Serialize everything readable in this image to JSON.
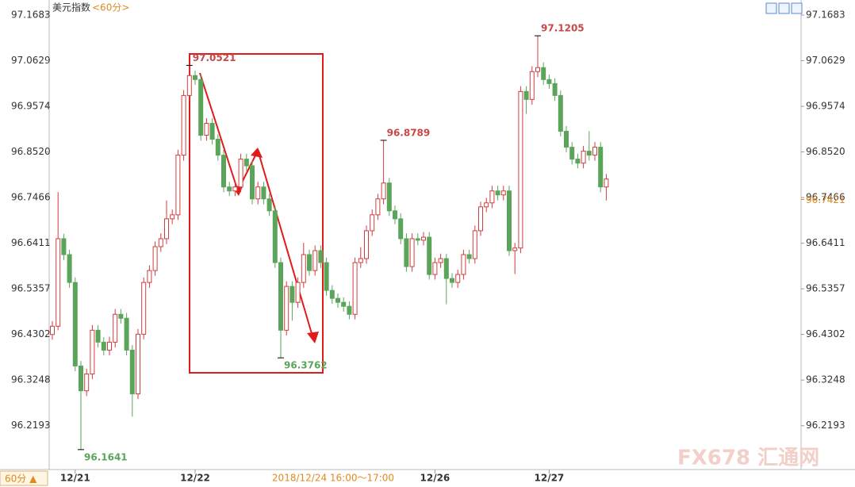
{
  "chart_data": {
    "type": "candlestick",
    "title": "美元指数",
    "period": "<60分>",
    "period_button": "60分 ▲",
    "crosshair_label": "2018/12/24 16:00～17:00",
    "watermark": "FX678 汇通网",
    "categories": [
      null,
      null,
      null,
      null,
      "12/21",
      null,
      null,
      null,
      null,
      null,
      null,
      null,
      null,
      null,
      null,
      null,
      null,
      null,
      null,
      null,
      null,
      null,
      null,
      null,
      null,
      "12/22",
      null,
      null,
      null,
      null,
      null,
      null,
      null,
      null,
      null,
      null,
      null,
      null,
      null,
      null,
      null,
      null,
      null,
      null,
      null,
      null,
      null,
      null,
      null,
      null,
      null,
      null,
      null,
      null,
      null,
      null,
      null,
      null,
      null,
      null,
      null,
      null,
      null,
      null,
      null,
      null,
      null,
      "12/26",
      null,
      null,
      null,
      null,
      null,
      null,
      null,
      null,
      null,
      null,
      null,
      null,
      null,
      null,
      null,
      null,
      null,
      null,
      null,
      "12/27",
      null,
      null,
      null,
      null,
      null,
      null,
      null,
      null,
      null,
      null
    ],
    "open": [
      96.43,
      96.4492,
      96.6515,
      96.6147,
      96.5504,
      96.3573,
      96.3,
      96.3389,
      96.44,
      96.4124,
      96.394,
      96.4124,
      96.4768,
      96.4676,
      96.394,
      96.2929,
      96.4308,
      96.5504,
      96.5779,
      96.6331,
      96.6515,
      96.6975,
      96.7067,
      96.8446,
      96.9825,
      97.0285,
      97.0193,
      96.8906,
      96.9182,
      96.8814,
      96.8446,
      96.7711,
      96.7619,
      96.7711,
      96.8354,
      96.82,
      96.7435,
      96.7711,
      96.7435,
      96.7159,
      96.5963,
      96.44,
      96.5412,
      96.5044,
      96.5504,
      96.6147,
      96.5779,
      96.6239,
      96.5963,
      96.532,
      96.5136,
      96.5044,
      96.4952,
      96.4768,
      96.5963,
      96.6055,
      96.6699,
      96.7067,
      96.7435,
      96.7802,
      96.7159,
      96.6975,
      96.6515,
      96.5871,
      96.6515,
      96.648,
      96.655,
      96.5688,
      96.5963,
      96.6055,
      96.5596,
      96.5504,
      96.5688,
      96.6147,
      96.6055,
      96.6699,
      96.7251,
      96.7343,
      96.7619,
      96.7527,
      96.7619,
      96.6239,
      96.63,
      96.9917,
      96.9734,
      97.0377,
      97.0469,
      97.0193,
      97.01,
      96.9825,
      96.8998,
      96.863,
      96.8354,
      96.8262,
      96.8538,
      96.8446,
      96.863,
      96.7711
    ],
    "high": [
      96.461,
      96.759,
      96.663,
      96.626,
      96.562,
      96.369,
      96.351,
      96.452,
      96.452,
      96.424,
      96.425,
      96.489,
      96.489,
      96.48,
      96.406,
      96.443,
      96.562,
      96.59,
      96.645,
      96.664,
      96.74,
      96.719,
      96.857,
      96.995,
      97.0521,
      97.04,
      97.031,
      96.93,
      96.93,
      96.893,
      96.857,
      96.783,
      96.783,
      96.848,
      96.848,
      96.832,
      96.783,
      96.783,
      96.755,
      96.728,
      96.608,
      96.553,
      96.553,
      96.562,
      96.642,
      96.626,
      96.636,
      96.636,
      96.608,
      96.544,
      96.525,
      96.516,
      96.507,
      96.608,
      96.632,
      96.682,
      96.719,
      96.755,
      96.8789,
      96.792,
      96.728,
      96.71,
      96.664,
      96.664,
      96.664,
      96.667,
      96.667,
      96.608,
      96.617,
      96.617,
      96.572,
      96.58,
      96.626,
      96.626,
      96.682,
      96.737,
      96.746,
      96.774,
      96.774,
      96.774,
      96.774,
      96.642,
      97.004,
      97.004,
      97.05,
      97.1205,
      97.059,
      97.031,
      97.022,
      96.994,
      96.912,
      96.875,
      96.848,
      96.866,
      96.9,
      96.875,
      96.875,
      96.801
    ],
    "low": [
      96.418,
      96.44,
      96.602,
      96.538,
      96.345,
      96.1641,
      96.288,
      96.327,
      96.4,
      96.382,
      96.382,
      96.4,
      96.455,
      96.382,
      96.24,
      96.281,
      96.419,
      96.538,
      96.566,
      96.621,
      96.639,
      96.685,
      96.695,
      96.832,
      96.97,
      97.007,
      96.878,
      96.878,
      96.869,
      96.832,
      96.759,
      96.75,
      96.75,
      96.759,
      96.808,
      96.731,
      96.731,
      96.731,
      96.704,
      96.584,
      96.3762,
      96.428,
      96.462,
      96.492,
      96.538,
      96.566,
      96.566,
      96.584,
      96.52,
      96.501,
      96.492,
      96.483,
      96.465,
      96.465,
      96.584,
      96.594,
      96.658,
      96.695,
      96.731,
      96.704,
      96.685,
      96.639,
      96.575,
      96.575,
      96.636,
      96.636,
      96.557,
      96.557,
      96.584,
      96.5,
      96.538,
      96.538,
      96.557,
      96.594,
      96.594,
      96.658,
      96.713,
      96.722,
      96.74,
      96.74,
      96.612,
      96.57,
      96.618,
      96.94,
      96.961,
      97.025,
      97.007,
      96.998,
      96.97,
      96.888,
      96.851,
      96.823,
      96.814,
      96.814,
      96.832,
      96.832,
      96.759,
      96.74
    ],
    "close": [
      96.4492,
      96.6515,
      96.6147,
      96.5504,
      96.3573,
      96.3,
      96.3389,
      96.44,
      96.4124,
      96.394,
      96.4124,
      96.4768,
      96.4676,
      96.394,
      96.2929,
      96.4308,
      96.5504,
      96.5779,
      96.6331,
      96.6515,
      96.6975,
      96.7067,
      96.8446,
      96.9825,
      97.0285,
      97.0193,
      96.8906,
      96.9182,
      96.8814,
      96.8446,
      96.7711,
      96.7619,
      96.7711,
      96.8354,
      96.82,
      96.7435,
      96.7711,
      96.7435,
      96.7159,
      96.5963,
      96.44,
      96.5412,
      96.5044,
      96.5504,
      96.6147,
      96.5779,
      96.6239,
      96.5963,
      96.532,
      96.5136,
      96.5044,
      96.4952,
      96.4768,
      96.5963,
      96.6055,
      96.6699,
      96.7067,
      96.7435,
      96.7802,
      96.7159,
      96.6975,
      96.6515,
      96.5871,
      96.6515,
      96.648,
      96.655,
      96.5688,
      96.5963,
      96.6055,
      96.5596,
      96.5504,
      96.5688,
      96.6147,
      96.6055,
      96.6699,
      96.7251,
      96.7343,
      96.7619,
      96.7527,
      96.7619,
      96.6239,
      96.63,
      96.9917,
      96.9734,
      97.0377,
      97.0469,
      97.0193,
      97.01,
      96.9825,
      96.8998,
      96.863,
      96.8354,
      96.8262,
      96.8538,
      96.8446,
      96.863,
      96.7711,
      96.7894
    ],
    "markers": [
      {
        "index": 24,
        "at": "high"
      },
      {
        "index": 85,
        "at": "high"
      },
      {
        "index": 58,
        "at": "high"
      },
      {
        "index": 5,
        "at": "low"
      },
      {
        "index": 40,
        "at": "low"
      }
    ],
    "last_price": 96.7421,
    "up_color": "#d03c3c",
    "down_color": "#5aa55a",
    "high_label_color": "#c84646",
    "low_label_color": "#5aa55a",
    "accent_color": "#e08a1e",
    "ylim": [
      96.118,
      97.194
    ],
    "yticks": [
      97.1683,
      97.0629,
      96.9574,
      {
        "value": 96.852,
        "label": "96.8520"
      },
      96.7466,
      96.6411,
      96.5357,
      96.4302,
      96.3248,
      96.2193
    ]
  }
}
